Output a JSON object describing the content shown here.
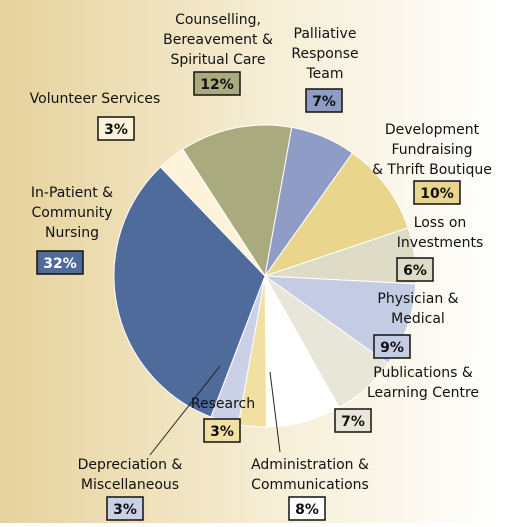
{
  "chart_data": {
    "type": "pie",
    "categories": [
      "Counselling,\nBereavement &\nSpiritual Care",
      "Palliative\nResponse\nTeam",
      "Development\nFundraising\n& Thrift Boutique",
      "Loss on\nInvestments",
      "Physician &\nMedical",
      "Publications &\nLearning Centre",
      "Administration &\nCommunications",
      "Research",
      "Depreciation &\nMiscellaneous",
      "In-Patient &\nCommunity\nNursing",
      "Volunteer Services"
    ],
    "values": [
      12,
      7,
      10,
      6,
      9,
      7,
      8,
      3,
      3,
      32,
      3
    ],
    "value_labels": [
      "12%",
      "7%",
      "10%",
      "6%",
      "9%",
      "7%",
      "8%",
      "3%",
      "3%",
      "32%",
      "3%"
    ],
    "colors": [
      "#a9aa7e",
      "#8f9cc6",
      "#e9d58c",
      "#dedcc6",
      "#c4cce4",
      "#e7e6d8",
      "#ffffff",
      "#f1e0a2",
      "#cad1e7",
      "#4e6b9b",
      "#fdf3da"
    ]
  }
}
